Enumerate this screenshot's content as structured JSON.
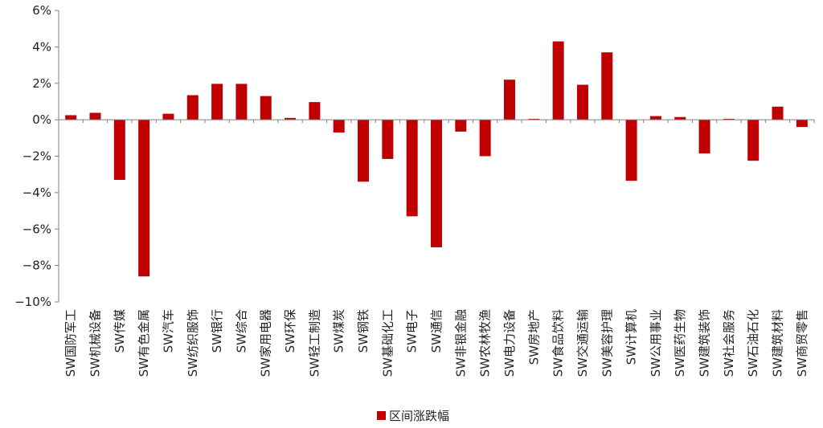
{
  "chart_data": {
    "type": "bar",
    "categories": [
      "SW国防军工",
      "SW机械设备",
      "SW传媒",
      "SW有色金属",
      "SW汽车",
      "SW纺织服饰",
      "SW银行",
      "SW综合",
      "SW家用电器",
      "SW环保",
      "SW轻工制造",
      "SW煤炭",
      "SW钢铁",
      "SW基础化工",
      "SW电子",
      "SW通信",
      "SW非银金融",
      "SW农林牧渔",
      "SW电力设备",
      "SW房地产",
      "SW食品饮料",
      "SW交通运输",
      "SW美容护理",
      "SW计算机",
      "SW公用事业",
      "SW医药生物",
      "SW建筑装饰",
      "SW社会服务",
      "SW石油石化",
      "SW建筑材料",
      "SW商贸零售"
    ],
    "series": [
      {
        "name": "区间涨跌幅",
        "color": "#C00000",
        "values": [
          0.25,
          0.38,
          -3.3,
          -8.6,
          0.33,
          1.35,
          1.97,
          1.97,
          1.3,
          0.1,
          0.97,
          -0.7,
          -3.4,
          -2.15,
          -5.3,
          -7.0,
          -0.65,
          -2.0,
          2.2,
          0.05,
          4.3,
          1.92,
          3.7,
          -3.35,
          0.2,
          0.15,
          -1.85,
          0.05,
          -2.25,
          0.72,
          -0.4
        ]
      }
    ],
    "ylim": [
      -10,
      6
    ],
    "yticks": [
      -10,
      -8,
      -6,
      -4,
      -2,
      0,
      2,
      4,
      6
    ],
    "ytick_labels": [
      "−10%",
      "−8%",
      "−6%",
      "−4%",
      "−2%",
      "0%",
      "2%",
      "4%",
      "6%"
    ],
    "grid": false,
    "legend_position": "bottom"
  }
}
